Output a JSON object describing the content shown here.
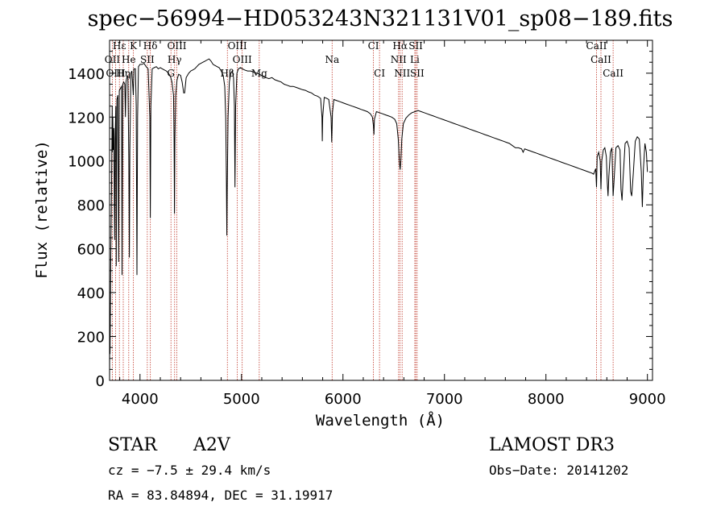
{
  "chart_data": {
    "type": "line",
    "title": "spec−56994−HD053243N321131V01_sp08−189.fits",
    "xlabel": "Wavelength (Å)",
    "ylabel": "Flux (relative)",
    "xlim": [
      3700,
      9050
    ],
    "ylim": [
      0,
      1550
    ],
    "x_ticks": [
      4000,
      5000,
      6000,
      7000,
      8000,
      9000
    ],
    "y_ticks": [
      0,
      200,
      400,
      600,
      800,
      1000,
      1200,
      1400
    ],
    "series": [
      {
        "name": "spectrum",
        "color": "#000000",
        "points": [
          [
            3700,
            0
          ],
          [
            3702,
            240
          ],
          [
            3705,
            120
          ],
          [
            3712,
            550
          ],
          [
            3720,
            900
          ],
          [
            3726,
            1250
          ],
          [
            3728,
            1040
          ],
          [
            3732,
            1200
          ],
          [
            3736,
            1050
          ],
          [
            3742,
            1150
          ],
          [
            3750,
            640
          ],
          [
            3755,
            1100
          ],
          [
            3762,
            1250
          ],
          [
            3766,
            520
          ],
          [
            3772,
            1280
          ],
          [
            3782,
            1300
          ],
          [
            3790,
            540
          ],
          [
            3796,
            1320
          ],
          [
            3806,
            1330
          ],
          [
            3818,
            1340
          ],
          [
            3823,
            480
          ],
          [
            3830,
            1350
          ],
          [
            3840,
            1360
          ],
          [
            3850,
            1350
          ],
          [
            3856,
            1200
          ],
          [
            3862,
            1360
          ],
          [
            3870,
            1380
          ],
          [
            3880,
            1390
          ],
          [
            3890,
            1020
          ],
          [
            3895,
            560
          ],
          [
            3900,
            1050
          ],
          [
            3910,
            1400
          ],
          [
            3920,
            1410
          ],
          [
            3934,
            1300
          ],
          [
            3940,
            1420
          ],
          [
            3955,
            1420
          ],
          [
            3963,
            1250
          ],
          [
            3970,
            480
          ],
          [
            3976,
            1200
          ],
          [
            3985,
            1430
          ],
          [
            4000,
            1440
          ],
          [
            4020,
            1440
          ],
          [
            4040,
            1445
          ],
          [
            4060,
            1430
          ],
          [
            4080,
            1420
          ],
          [
            4097,
            1200
          ],
          [
            4102,
            740
          ],
          [
            4107,
            1250
          ],
          [
            4120,
            1420
          ],
          [
            4140,
            1425
          ],
          [
            4160,
            1430
          ],
          [
            4180,
            1420
          ],
          [
            4200,
            1425
          ],
          [
            4220,
            1420
          ],
          [
            4240,
            1415
          ],
          [
            4260,
            1410
          ],
          [
            4280,
            1400
          ],
          [
            4300,
            1385
          ],
          [
            4315,
            1360
          ],
          [
            4330,
            1300
          ],
          [
            4336,
            1100
          ],
          [
            4340,
            760
          ],
          [
            4344,
            1100
          ],
          [
            4352,
            1300
          ],
          [
            4365,
            1370
          ],
          [
            4380,
            1395
          ],
          [
            4400,
            1390
          ],
          [
            4415,
            1360
          ],
          [
            4430,
            1310
          ],
          [
            4440,
            1310
          ],
          [
            4455,
            1380
          ],
          [
            4480,
            1400
          ],
          [
            4500,
            1410
          ],
          [
            4520,
            1415
          ],
          [
            4540,
            1420
          ],
          [
            4560,
            1430
          ],
          [
            4580,
            1440
          ],
          [
            4600,
            1445
          ],
          [
            4620,
            1450
          ],
          [
            4640,
            1455
          ],
          [
            4660,
            1460
          ],
          [
            4680,
            1465
          ],
          [
            4700,
            1455
          ],
          [
            4720,
            1440
          ],
          [
            4740,
            1435
          ],
          [
            4760,
            1430
          ],
          [
            4780,
            1425
          ],
          [
            4800,
            1410
          ],
          [
            4820,
            1390
          ],
          [
            4835,
            1340
          ],
          [
            4845,
            1200
          ],
          [
            4852,
            900
          ],
          [
            4856,
            660
          ],
          [
            4860,
            880
          ],
          [
            4868,
            1200
          ],
          [
            4880,
            1360
          ],
          [
            4895,
            1400
          ],
          [
            4910,
            1410
          ],
          [
            4922,
            1380
          ],
          [
            4930,
            1250
          ],
          [
            4936,
            880
          ],
          [
            4942,
            1250
          ],
          [
            4955,
            1400
          ],
          [
            4970,
            1420
          ],
          [
            4990,
            1425
          ],
          [
            5010,
            1420
          ],
          [
            5030,
            1415
          ],
          [
            5060,
            1410
          ],
          [
            5090,
            1410
          ],
          [
            5120,
            1405
          ],
          [
            5150,
            1400
          ],
          [
            5180,
            1395
          ],
          [
            5210,
            1385
          ],
          [
            5240,
            1380
          ],
          [
            5270,
            1375
          ],
          [
            5300,
            1380
          ],
          [
            5330,
            1370
          ],
          [
            5360,
            1365
          ],
          [
            5390,
            1360
          ],
          [
            5420,
            1350
          ],
          [
            5450,
            1345
          ],
          [
            5480,
            1340
          ],
          [
            5510,
            1340
          ],
          [
            5540,
            1335
          ],
          [
            5570,
            1330
          ],
          [
            5600,
            1325
          ],
          [
            5630,
            1322
          ],
          [
            5660,
            1315
          ],
          [
            5690,
            1310
          ],
          [
            5720,
            1300
          ],
          [
            5750,
            1295
          ],
          [
            5780,
            1285
          ],
          [
            5793,
            1200
          ],
          [
            5796,
            1090
          ],
          [
            5800,
            1200
          ],
          [
            5815,
            1290
          ],
          [
            5840,
            1285
          ],
          [
            5860,
            1280
          ],
          [
            5883,
            1200
          ],
          [
            5889,
            1085
          ],
          [
            5893,
            1150
          ],
          [
            5896,
            1220
          ],
          [
            5910,
            1280
          ],
          [
            5940,
            1275
          ],
          [
            5970,
            1270
          ],
          [
            6000,
            1265
          ],
          [
            6030,
            1260
          ],
          [
            6060,
            1255
          ],
          [
            6090,
            1250
          ],
          [
            6120,
            1245
          ],
          [
            6150,
            1240
          ],
          [
            6180,
            1235
          ],
          [
            6210,
            1230
          ],
          [
            6240,
            1225
          ],
          [
            6270,
            1215
          ],
          [
            6290,
            1200
          ],
          [
            6300,
            1160
          ],
          [
            6305,
            1120
          ],
          [
            6310,
            1190
          ],
          [
            6330,
            1225
          ],
          [
            6360,
            1220
          ],
          [
            6390,
            1215
          ],
          [
            6420,
            1210
          ],
          [
            6450,
            1205
          ],
          [
            6480,
            1200
          ],
          [
            6510,
            1190
          ],
          [
            6530,
            1170
          ],
          [
            6545,
            1100
          ],
          [
            6555,
            1000
          ],
          [
            6563,
            960
          ],
          [
            6570,
            1000
          ],
          [
            6580,
            1100
          ],
          [
            6595,
            1170
          ],
          [
            6620,
            1195
          ],
          [
            6650,
            1210
          ],
          [
            6680,
            1220
          ],
          [
            6710,
            1225
          ],
          [
            6740,
            1230
          ],
          [
            6770,
            1225
          ],
          [
            6800,
            1220
          ],
          [
            6830,
            1215
          ],
          [
            6860,
            1210
          ],
          [
            6890,
            1205
          ],
          [
            6920,
            1200
          ],
          [
            6950,
            1195
          ],
          [
            6980,
            1190
          ],
          [
            7010,
            1185
          ],
          [
            7040,
            1180
          ],
          [
            7070,
            1175
          ],
          [
            7100,
            1170
          ],
          [
            7130,
            1165
          ],
          [
            7160,
            1160
          ],
          [
            7190,
            1155
          ],
          [
            7220,
            1150
          ],
          [
            7250,
            1145
          ],
          [
            7280,
            1140
          ],
          [
            7310,
            1135
          ],
          [
            7340,
            1130
          ],
          [
            7370,
            1125
          ],
          [
            7400,
            1120
          ],
          [
            7430,
            1115
          ],
          [
            7460,
            1110
          ],
          [
            7490,
            1105
          ],
          [
            7520,
            1100
          ],
          [
            7550,
            1095
          ],
          [
            7580,
            1090
          ],
          [
            7610,
            1085
          ],
          [
            7640,
            1080
          ],
          [
            7670,
            1070
          ],
          [
            7700,
            1060
          ],
          [
            7730,
            1060
          ],
          [
            7760,
            1055
          ],
          [
            7775,
            1040
          ],
          [
            7790,
            1055
          ],
          [
            7820,
            1050
          ],
          [
            7850,
            1045
          ],
          [
            7880,
            1040
          ],
          [
            7910,
            1035
          ],
          [
            7940,
            1030
          ],
          [
            7970,
            1025
          ],
          [
            8000,
            1020
          ],
          [
            8030,
            1015
          ],
          [
            8060,
            1010
          ],
          [
            8090,
            1005
          ],
          [
            8120,
            1000
          ],
          [
            8150,
            995
          ],
          [
            8180,
            990
          ],
          [
            8210,
            985
          ],
          [
            8240,
            980
          ],
          [
            8270,
            975
          ],
          [
            8300,
            970
          ],
          [
            8330,
            965
          ],
          [
            8360,
            960
          ],
          [
            8390,
            955
          ],
          [
            8420,
            950
          ],
          [
            8450,
            945
          ],
          [
            8470,
            940
          ],
          [
            8490,
            965
          ],
          [
            8498,
            880
          ],
          [
            8505,
            1020
          ],
          [
            8520,
            1040
          ],
          [
            8535,
            1000
          ],
          [
            8542,
            870
          ],
          [
            8550,
            1000
          ],
          [
            8565,
            1050
          ],
          [
            8580,
            1060
          ],
          [
            8595,
            1020
          ],
          [
            8605,
            900
          ],
          [
            8612,
            840
          ],
          [
            8620,
            930
          ],
          [
            8635,
            1040
          ],
          [
            8650,
            1060
          ],
          [
            8662,
            840
          ],
          [
            8670,
            900
          ],
          [
            8690,
            1060
          ],
          [
            8710,
            1070
          ],
          [
            8730,
            1050
          ],
          [
            8740,
            870
          ],
          [
            8750,
            820
          ],
          [
            8760,
            920
          ],
          [
            8780,
            1080
          ],
          [
            8800,
            1090
          ],
          [
            8820,
            1060
          ],
          [
            8835,
            860
          ],
          [
            8845,
            840
          ],
          [
            8860,
            940
          ],
          [
            8880,
            1090
          ],
          [
            8900,
            1110
          ],
          [
            8920,
            1100
          ],
          [
            8940,
            950
          ],
          [
            8950,
            790
          ],
          [
            8960,
            960
          ],
          [
            8975,
            1080
          ],
          [
            8990,
            1040
          ],
          [
            9000,
            950
          ]
        ]
      }
    ],
    "lines_top": [
      {
        "label": "Hε",
        "x": 3797
      },
      {
        "label": "K",
        "x": 3935
      },
      {
        "label": "Hδ",
        "x": 4102
      },
      {
        "label": "OIII",
        "x": 4363
      },
      {
        "label": "OIII",
        "x": 4959
      },
      {
        "label": "CI",
        "x": 6300
      },
      {
        "label": "Hα",
        "x": 6563
      },
      {
        "label": "SII",
        "x": 6717
      },
      {
        "label": "CaII",
        "x": 8498
      }
    ],
    "lines_mid": [
      {
        "label": "OII",
        "x": 3727
      },
      {
        "label": "He",
        "x": 3889
      },
      {
        "label": "SII",
        "x": 4072
      },
      {
        "label": "Hγ",
        "x": 4341
      },
      {
        "label": "OIII",
        "x": 5007
      },
      {
        "label": "Na",
        "x": 5893
      },
      {
        "label": "NII",
        "x": 6548
      },
      {
        "label": "Li",
        "x": 6708
      },
      {
        "label": "CaII",
        "x": 8542
      }
    ],
    "lines_low": [
      {
        "label": "OIII",
        "x": 3760
      },
      {
        "label": "Hη",
        "x": 3835
      },
      {
        "label": "G",
        "x": 4305
      },
      {
        "label": "Hβ",
        "x": 4861
      },
      {
        "label": "Mg",
        "x": 5175
      },
      {
        "label": "CI",
        "x": 6360
      },
      {
        "label": "NII",
        "x": 6583
      },
      {
        "label": "SII",
        "x": 6731
      },
      {
        "label": "CaII",
        "x": 8662
      }
    ],
    "marker_color": "#c0392b"
  },
  "info": {
    "object_class": "STAR",
    "subclass": "A2V",
    "survey": "LAMOST DR3",
    "cz_text": "cz = −7.5 ± 29.4 km/s",
    "obs_date": "Obs−Date: 20141202",
    "radec": "RA =  83.84894, DEC =  31.19917"
  }
}
